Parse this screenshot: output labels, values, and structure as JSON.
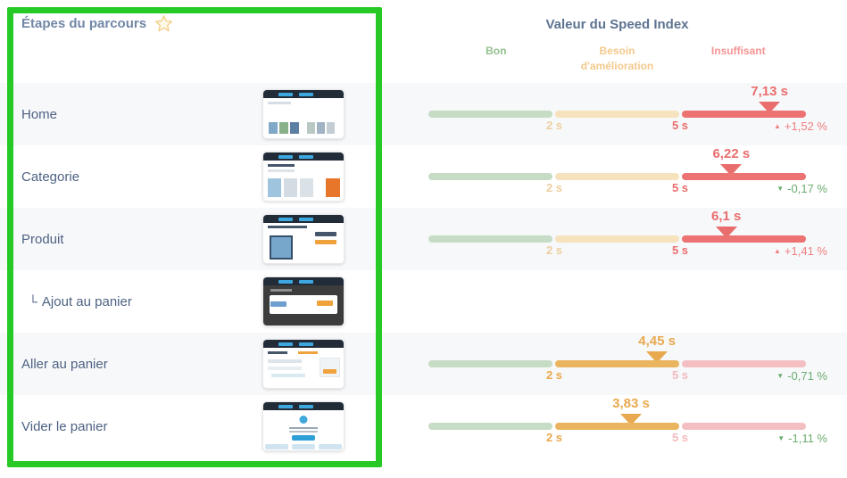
{
  "left_panel": {
    "title": "Étapes du parcours"
  },
  "header": {
    "title": "Valeur du Speed Index",
    "zones": [
      {
        "label": "Bon",
        "color": "#94c18e"
      },
      {
        "label": "Besoin d'amélioration",
        "color": "#f4c98c"
      },
      {
        "label": "Insuffisant",
        "color": "#f59493"
      }
    ]
  },
  "scale": {
    "ticks": [
      "2 s",
      "5 s"
    ],
    "good_max_seconds": 2,
    "improvement_max_seconds": 5,
    "gauge_max_seconds": 8
  },
  "colors": {
    "zone_good_muted": "#c6dcc5",
    "zone_mid_muted": "#f6e2bd",
    "zone_mid_strong": "#eab55e",
    "zone_bad_muted": "#f4bfc2",
    "zone_bad_strong": "#ed7272",
    "change_up_red": "#ef8080",
    "change_down_green": "#6bad6f",
    "annotation_green": "#26c926"
  },
  "chart_data": {
    "type": "bar",
    "title": "Valeur du Speed Index",
    "categories": [
      "Home",
      "Categorie",
      "Produit",
      "Ajout au panier",
      "Aller au panier",
      "Vider le panier"
    ],
    "values_seconds": [
      7.13,
      6.22,
      6.1,
      null,
      4.45,
      3.83
    ],
    "change_percent": [
      1.52,
      -0.17,
      1.41,
      null,
      -0.71,
      -1.11
    ],
    "thresholds_seconds": [
      2,
      5
    ],
    "zone_labels": [
      "Bon",
      "Besoin d'amélioration",
      "Insuffisant"
    ]
  },
  "rows": [
    {
      "label": "Home",
      "prefix": "",
      "indent": false,
      "thumbnail_variant": "home",
      "value": "7,13 s",
      "value_seconds": 7.13,
      "zone": "red",
      "change": "+1,52 %",
      "change_arrow": "▲",
      "change_color": "red"
    },
    {
      "label": "Categorie",
      "prefix": "",
      "indent": false,
      "thumbnail_variant": "category",
      "value": "6,22 s",
      "value_seconds": 6.22,
      "zone": "red",
      "change": "-0,17 %",
      "change_arrow": "▼",
      "change_color": "green"
    },
    {
      "label": "Produit",
      "prefix": "",
      "indent": false,
      "thumbnail_variant": "product",
      "value": "6,1 s",
      "value_seconds": 6.1,
      "zone": "red",
      "change": "+1,41 %",
      "change_arrow": "▲",
      "change_color": "red"
    },
    {
      "label": "Ajout au panier",
      "prefix": "└",
      "indent": true,
      "thumbnail_variant": "modal",
      "value": null,
      "value_seconds": null,
      "zone": null,
      "change": null,
      "change_arrow": null,
      "change_color": null
    },
    {
      "label": "Aller au panier",
      "prefix": "",
      "indent": false,
      "thumbnail_variant": "cart",
      "value": "4,45 s",
      "value_seconds": 4.45,
      "zone": "orange",
      "change": "-0,71 %",
      "change_arrow": "▼",
      "change_color": "green"
    },
    {
      "label": "Vider le panier",
      "prefix": "",
      "indent": false,
      "thumbnail_variant": "empty",
      "value": "3,83 s",
      "value_seconds": 3.83,
      "zone": "orange",
      "change": "-1,11 %",
      "change_arrow": "▼",
      "change_color": "green"
    }
  ]
}
